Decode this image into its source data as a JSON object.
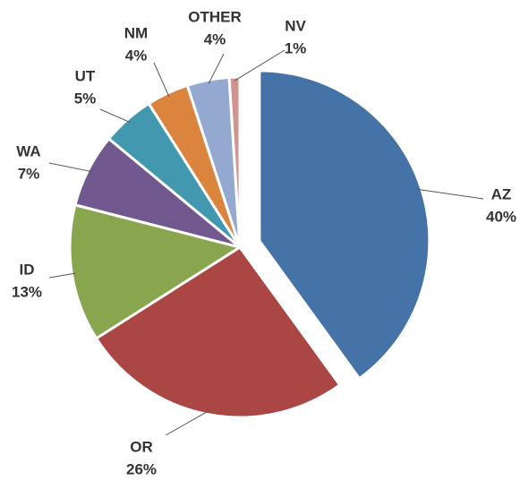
{
  "chart_data": {
    "type": "pie",
    "categories": [
      "AZ",
      "OR",
      "ID",
      "WA",
      "UT",
      "NM",
      "OTHER",
      "NV"
    ],
    "values": [
      40,
      26,
      13,
      7,
      5,
      4,
      4,
      1
    ],
    "value_labels": [
      "40%",
      "26%",
      "13%",
      "7%",
      "5%",
      "4%",
      "4%",
      "1%"
    ],
    "colors": [
      "#4572a7",
      "#aa4643",
      "#89a54e",
      "#71588f",
      "#4198af",
      "#db843d",
      "#93a9cf",
      "#d19392"
    ],
    "exploded": "AZ"
  }
}
